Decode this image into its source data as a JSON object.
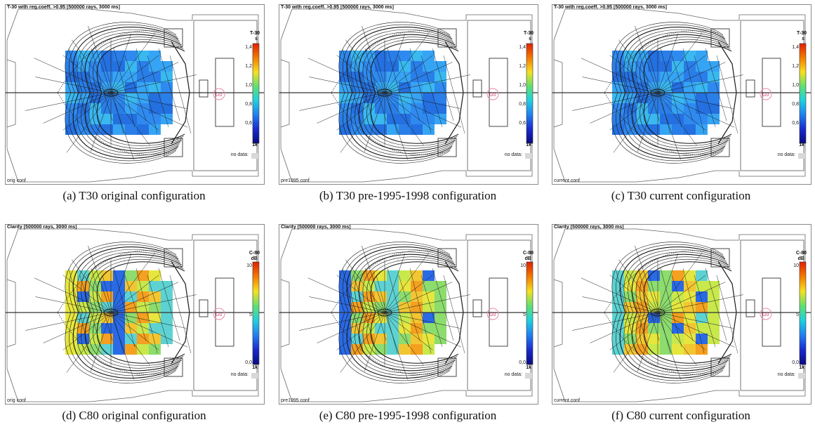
{
  "colors": {
    "t30_map": [
      "#2f8af0",
      "#36a4f4",
      "#2a7ee8",
      "#3ab8f0",
      "#2470e0"
    ],
    "c80_map": [
      "#c8e84c",
      "#e6e63e",
      "#8ddc6e",
      "#f2c632",
      "#5ed2d2",
      "#f4a020",
      "#2a6ae6"
    ],
    "mesh": "#1a1a1a",
    "source": "#e88aa8"
  },
  "panels": [
    {
      "key": "a",
      "metric": "T30",
      "title": "T-30 with reg.coeff. >0.95 [500000 rays, 3000 ms]",
      "config": "orig conf",
      "legend_name": "T-30",
      "legend_unit": "s",
      "ticks": [
        "1,4",
        "1,2",
        "1,0",
        "0,8",
        "0,6"
      ],
      "legend_k": "1k",
      "no_data": "no data:",
      "source_label": "G0",
      "caption": "(a)  T30 original configuration"
    },
    {
      "key": "b",
      "metric": "T30",
      "title": "T-30 with reg.coeff. >0.95 [500000 rays, 3000 ms]",
      "config": "pre1995 conf",
      "legend_name": "T-30",
      "legend_unit": "s",
      "ticks": [
        "1,4",
        "1,2",
        "1,0",
        "0,8",
        "0,6"
      ],
      "legend_k": "1k",
      "no_data": "no data:",
      "source_label": "G0",
      "caption": "(b)  T30 pre-1995-1998 configuration"
    },
    {
      "key": "c",
      "metric": "T30",
      "title": "T-30 with reg.coeff. >0.95 [500000 rays, 3000 ms]",
      "config": "current conf",
      "legend_name": "T-30",
      "legend_unit": "s",
      "ticks": [
        "1,4",
        "1,2",
        "1,0",
        "0,8",
        "0,6"
      ],
      "legend_k": "1k",
      "no_data": "no data:",
      "source_label": "G0",
      "caption": "(c)  T30 current configuration"
    },
    {
      "key": "d",
      "metric": "C80",
      "title": "Clarity [500000 rays, 3000 ms]",
      "config": "orig conf",
      "legend_name": "C-80",
      "legend_unit": "dB",
      "ticks": [
        "10",
        "5",
        "0,0"
      ],
      "legend_k": "1k",
      "no_data": "no data:",
      "source_label": "G0",
      "caption": "(d)  C80 original configuration"
    },
    {
      "key": "e",
      "metric": "C80",
      "title": "Clarity [500000 rays, 3000 ms]",
      "config": "pre1995 conf",
      "legend_name": "C-80",
      "legend_unit": "dB",
      "ticks": [
        "10",
        "5",
        "0,0"
      ],
      "legend_k": "1k",
      "no_data": "no data:",
      "source_label": "G0",
      "caption": "(e)  C80 pre-1995-1998 configuration"
    },
    {
      "key": "f",
      "metric": "C80",
      "title": "Clarity [500000 rays, 3000 ms]",
      "config": "current conf",
      "legend_name": "C-80",
      "legend_unit": "dB",
      "ticks": [
        "10",
        "5",
        "0,0"
      ],
      "legend_k": "1k",
      "no_data": "no data:",
      "source_label": "G0",
      "caption": "(f)  C80 current configuration"
    }
  ]
}
